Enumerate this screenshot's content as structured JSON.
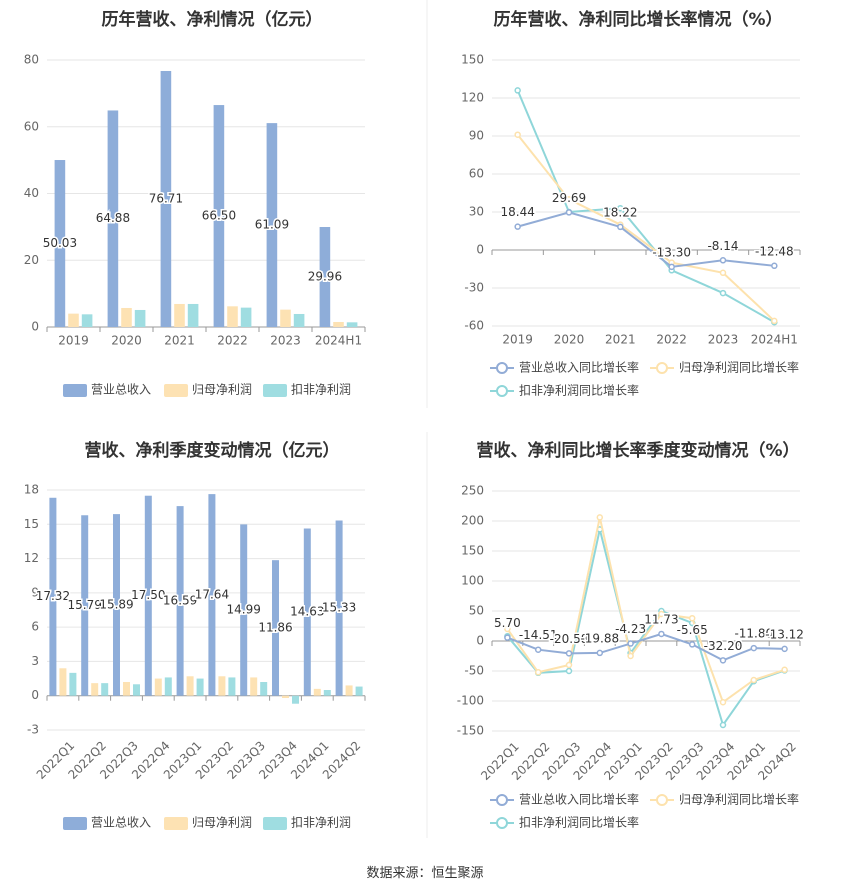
{
  "source": "数据来源：恒生聚源",
  "colors": {
    "revenue": "#8eadd9",
    "parent_profit": "#fde2b3",
    "deducted_profit": "#9fdde1",
    "revenue_line": "#92acd6",
    "parent_line": "#fde2ad",
    "deducted_line": "#8fd6d9"
  },
  "chart_data": [
    {
      "type": "bar",
      "title": "历年营收、净利情况（亿元）",
      "categories": [
        "2019",
        "2020",
        "2021",
        "2022",
        "2023",
        "2024H1"
      ],
      "ylim": [
        0,
        80
      ],
      "yticks": [
        0,
        20,
        40,
        60,
        80
      ],
      "grid": true,
      "legend": "bottom",
      "series": [
        {
          "name": "营业总收入",
          "values": [
            50.03,
            64.88,
            76.71,
            66.5,
            61.09,
            29.96
          ],
          "labels": [
            "50.03",
            "64.88",
            "76.71",
            "66.50",
            "61.09",
            "29.96"
          ]
        },
        {
          "name": "归母净利润",
          "values": [
            4.0,
            5.7,
            6.9,
            6.2,
            5.2,
            1.5
          ]
        },
        {
          "name": "扣非净利润",
          "values": [
            3.8,
            5.1,
            6.9,
            5.8,
            3.9,
            1.4
          ]
        }
      ]
    },
    {
      "type": "line",
      "title": "历年营收、净利同比增长率情况（%）",
      "categories": [
        "2019",
        "2020",
        "2021",
        "2022",
        "2023",
        "2024H1"
      ],
      "ylim": [
        -60,
        150
      ],
      "yticks": [
        -60,
        -30,
        0,
        30,
        60,
        90,
        120,
        150
      ],
      "grid": true,
      "legend": "bottom",
      "series": [
        {
          "name": "营业总收入同比增长率",
          "values": [
            18.44,
            29.69,
            18.22,
            -13.3,
            -8.14,
            -12.48
          ],
          "labels": [
            "18.44",
            "29.69",
            "18.22",
            "-13.30",
            "-8.14",
            "-12.48"
          ]
        },
        {
          "name": "归母净利润同比增长率",
          "values": [
            91,
            40,
            20,
            -10,
            -18,
            -56
          ]
        },
        {
          "name": "扣非净利润同比增长率",
          "values": [
            126,
            30,
            33,
            -16,
            -34,
            -57
          ]
        }
      ]
    },
    {
      "type": "bar",
      "title": "营收、净利季度变动情况（亿元）",
      "categories": [
        "2022Q1",
        "2022Q2",
        "2022Q3",
        "2022Q4",
        "2023Q1",
        "2023Q2",
        "2023Q3",
        "2023Q4",
        "2024Q1",
        "2024Q2"
      ],
      "ylim": [
        -3,
        18
      ],
      "yticks": [
        -3,
        0,
        3,
        6,
        9,
        12,
        15,
        18
      ],
      "grid": true,
      "legend": "bottom",
      "series": [
        {
          "name": "营业总收入",
          "values": [
            17.32,
            15.79,
            15.89,
            17.5,
            16.59,
            17.64,
            14.99,
            11.86,
            14.63,
            15.33
          ],
          "labels": [
            "17.32",
            "15.79",
            "15.89",
            "17.50",
            "16.59",
            "17.64",
            "14.99",
            "11.86",
            "14.63",
            "15.33"
          ]
        },
        {
          "name": "归母净利润",
          "values": [
            2.4,
            1.1,
            1.2,
            1.5,
            1.7,
            1.7,
            1.6,
            -0.2,
            0.6,
            0.9
          ]
        },
        {
          "name": "扣非净利润",
          "values": [
            2.0,
            1.1,
            1.0,
            1.6,
            1.5,
            1.6,
            1.2,
            -0.7,
            0.5,
            0.8
          ]
        }
      ]
    },
    {
      "type": "line",
      "title": "营收、净利同比增长率季度变动情况（%）",
      "categories": [
        "2022Q1",
        "2022Q2",
        "2022Q3",
        "2022Q4",
        "2023Q1",
        "2023Q2",
        "2023Q3",
        "2023Q4",
        "2024Q1",
        "2024Q2"
      ],
      "ylim": [
        -150,
        250
      ],
      "yticks": [
        -150,
        -100,
        -50,
        0,
        50,
        100,
        150,
        200,
        250
      ],
      "grid": true,
      "legend": "bottom",
      "series": [
        {
          "name": "营业总收入同比增长率",
          "values": [
            5.7,
            -14.51,
            -20.58,
            -19.88,
            -4.23,
            11.73,
            -5.65,
            -32.2,
            -11.8,
            -13.12
          ],
          "labels": [
            "5.70",
            "-14.51",
            "-20.58",
            "-19.88",
            "-4.23",
            "11.73",
            "-5.65",
            "-32.20",
            "-11.80",
            "-13.12"
          ]
        },
        {
          "name": "归母净利润同比增长率",
          "values": [
            20,
            -52,
            -40,
            206,
            -25,
            45,
            38,
            -102,
            -65,
            -48
          ]
        },
        {
          "name": "扣非净利润同比增长率",
          "values": [
            8,
            -53,
            -50,
            186,
            -20,
            50,
            30,
            -140,
            -67,
            -49
          ]
        }
      ]
    }
  ]
}
